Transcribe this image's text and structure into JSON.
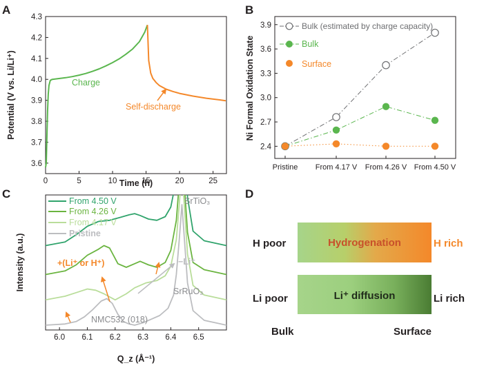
{
  "panels": {
    "a": "A",
    "b": "B",
    "c": "C",
    "d": "D"
  },
  "colors": {
    "green": "#5ab64e",
    "orange": "#f4882a",
    "gray": "#6d6e71",
    "axis": "#231f20",
    "c450": "#2fa36b",
    "c426": "#6ab43f",
    "c417": "#b9dd9a",
    "cpristine": "#bcbdc0"
  },
  "chart_data": [
    {
      "id": "A",
      "type": "line",
      "xlabel": "Time (h)",
      "ylabel": "Potential (V vs. Li/Li⁺)",
      "xlim": [
        0,
        27
      ],
      "ylim": [
        3.55,
        4.3
      ],
      "xticks": [
        0,
        5,
        10,
        15,
        20,
        25
      ],
      "yticks": [
        3.6,
        3.7,
        3.8,
        3.9,
        4.0,
        4.1,
        4.2,
        4.3
      ],
      "series": [
        {
          "name": "Charge",
          "color": "#5ab64e",
          "x": [
            0.0,
            0.1,
            0.2,
            0.3,
            0.4,
            0.5,
            0.7,
            1.0,
            2.0,
            3.0,
            4.0,
            5.0,
            6.0,
            7.0,
            8.0,
            9.0,
            10.0,
            11.0,
            12.0,
            13.0,
            14.0,
            14.8,
            15.2
          ],
          "y": [
            3.58,
            3.6,
            3.72,
            3.85,
            3.93,
            3.97,
            3.995,
            4.0,
            4.004,
            4.008,
            4.013,
            4.02,
            4.028,
            4.038,
            4.05,
            4.064,
            4.08,
            4.098,
            4.12,
            4.145,
            4.18,
            4.225,
            4.26
          ]
        },
        {
          "name": "Self-discharge",
          "color": "#f4882a",
          "x": [
            15.2,
            15.4,
            15.7,
            16.0,
            16.5,
            17.0,
            18.0,
            19.0,
            20.0,
            22.0,
            24.0,
            26.0,
            26.9
          ],
          "y": [
            4.26,
            4.09,
            4.03,
            4.005,
            3.985,
            3.97,
            3.953,
            3.942,
            3.933,
            3.92,
            3.91,
            3.902,
            3.898
          ]
        }
      ],
      "annotations": [
        "Charge",
        "Self-discharge"
      ]
    },
    {
      "id": "B",
      "type": "line",
      "xlabel": "",
      "ylabel": "Ni Formal Oxidation State",
      "categories": [
        "Pristine",
        "From 4.17 V",
        "From 4.26 V",
        "From 4.50 V"
      ],
      "ylim": [
        2.25,
        4.0
      ],
      "yticks": [
        2.4,
        2.7,
        3.0,
        3.3,
        3.6,
        3.9
      ],
      "series": [
        {
          "name": "Bulk (estimated by charge capacity)",
          "values": [
            2.4,
            2.76,
            3.4,
            3.8
          ],
          "color": "#6d6e71",
          "marker": "open-circle",
          "line": "dashdot"
        },
        {
          "name": "Bulk",
          "values": [
            2.4,
            2.6,
            2.89,
            2.72
          ],
          "color": "#5ab64e",
          "marker": "filled-circle",
          "line": "dashdot"
        },
        {
          "name": "Surface",
          "values": [
            2.4,
            2.43,
            2.4,
            2.4
          ],
          "color": "#f4882a",
          "marker": "filled-circle",
          "line": "dotted"
        }
      ],
      "legend": "top-left"
    },
    {
      "id": "C",
      "type": "line",
      "xlabel": "Q_z (Å⁻¹)",
      "ylabel": "Intensity (a.u.)",
      "xlim": [
        5.95,
        6.6
      ],
      "xticks": [
        6.0,
        6.1,
        6.2,
        6.3,
        6.4,
        6.5
      ],
      "series": [
        {
          "name": "From 4.50 V",
          "color": "#2fa36b",
          "offset": 0.66,
          "x": [
            5.95,
            6.02,
            6.06,
            6.1,
            6.14,
            6.18,
            6.22,
            6.25,
            6.27,
            6.29,
            6.32,
            6.35,
            6.38,
            6.4,
            6.42,
            6.43,
            6.44,
            6.45,
            6.46,
            6.48,
            6.52,
            6.56,
            6.6
          ],
          "y": [
            0.0,
            0.03,
            0.09,
            0.16,
            0.2,
            0.21,
            0.235,
            0.255,
            0.265,
            0.25,
            0.22,
            0.21,
            0.24,
            0.32,
            0.55,
            0.85,
            1.17,
            0.8,
            0.4,
            0.12,
            0.04,
            0.02,
            0.0
          ]
        },
        {
          "name": "From 4.26 V",
          "color": "#6ab43f",
          "offset": 0.42,
          "x": [
            5.95,
            6.02,
            6.06,
            6.1,
            6.14,
            6.16,
            6.18,
            6.21,
            6.24,
            6.27,
            6.29,
            6.32,
            6.35,
            6.38,
            6.4,
            6.42,
            6.43,
            6.44,
            6.45,
            6.46,
            6.48,
            6.52,
            6.56,
            6.6
          ],
          "y": [
            0.0,
            0.03,
            0.08,
            0.16,
            0.21,
            0.24,
            0.22,
            0.09,
            0.06,
            0.09,
            0.11,
            0.08,
            0.06,
            0.1,
            0.2,
            0.45,
            0.75,
            1.02,
            0.7,
            0.35,
            0.1,
            0.04,
            0.02,
            0.0
          ]
        },
        {
          "name": "From 4.17 V",
          "color": "#b9dd9a",
          "offset": 0.21,
          "x": [
            5.95,
            6.02,
            6.06,
            6.1,
            6.13,
            6.16,
            6.2,
            6.24,
            6.27,
            6.31,
            6.35,
            6.38,
            6.4,
            6.42,
            6.43,
            6.44,
            6.45,
            6.46,
            6.48,
            6.52,
            6.56,
            6.6
          ],
          "y": [
            0.0,
            0.03,
            0.06,
            0.09,
            0.08,
            0.05,
            0.0,
            0.05,
            0.1,
            0.14,
            0.16,
            0.2,
            0.28,
            0.5,
            0.78,
            1.08,
            0.74,
            0.38,
            0.12,
            0.04,
            0.02,
            0.0
          ]
        },
        {
          "name": "Pristine",
          "color": "#bcbdc0",
          "offset": 0.0,
          "x": [
            5.95,
            6.02,
            6.06,
            6.09,
            6.12,
            6.15,
            6.17,
            6.19,
            6.21,
            6.23,
            6.25,
            6.27,
            6.3,
            6.33,
            6.36,
            6.39,
            6.41,
            6.42,
            6.43,
            6.44,
            6.45,
            6.46,
            6.48,
            6.52,
            6.56,
            6.6
          ],
          "y": [
            0.0,
            0.01,
            0.03,
            0.07,
            0.13,
            0.2,
            0.22,
            0.18,
            0.09,
            0.03,
            0.01,
            0.0,
            0.02,
            0.05,
            0.08,
            0.14,
            0.25,
            0.42,
            0.7,
            1.0,
            0.68,
            0.35,
            0.12,
            0.04,
            0.02,
            0.0
          ]
        }
      ],
      "annotations": {
        "srtio3": "SrTiO₃",
        "srruo3": "SrRuO₃",
        "nmc": "NMC532 (018)",
        "lih_plus": "+(Li⁺ or H⁺)",
        "li_minus": "−Li⁺"
      },
      "legend": "top-left"
    }
  ],
  "diagram_d": {
    "h_poor": "H poor",
    "h_rich": "H rich",
    "hydrogenation": "Hydrogenation",
    "li_poor": "Li poor",
    "li_rich": "Li rich",
    "li_diffusion": "Li⁺ diffusion",
    "bulk": "Bulk",
    "surface": "Surface"
  }
}
